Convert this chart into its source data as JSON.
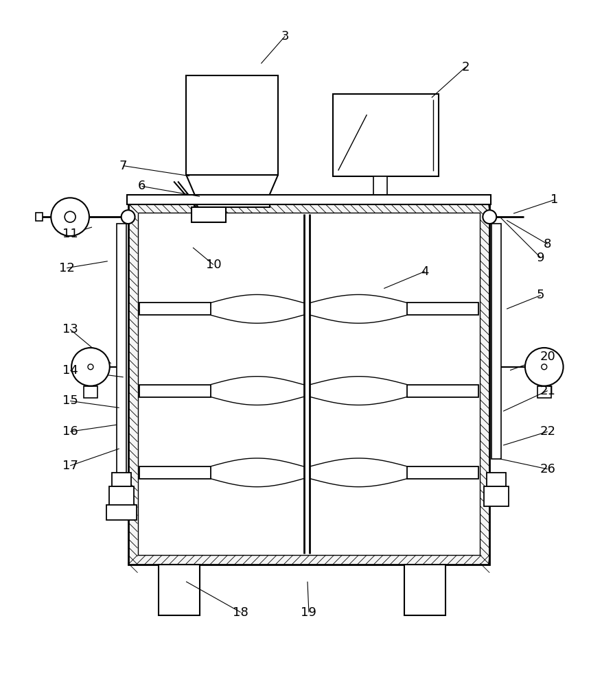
{
  "bg_color": "#ffffff",
  "lc": "#000000",
  "figsize": [
    8.78,
    10.0
  ],
  "dpi": 100
}
